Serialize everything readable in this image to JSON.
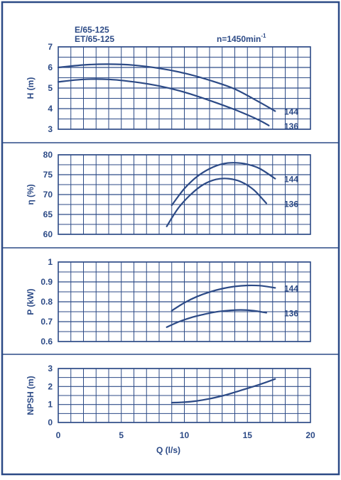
{
  "colors": {
    "ink": "#2c4a86",
    "grid": "#2c4a86",
    "background": "#ffffff"
  },
  "header": {
    "model_line_1": "E/65-125",
    "model_line_2": "ET/65-125",
    "speed_label": "n=1450min",
    "speed_exponent": "-1"
  },
  "x_axis": {
    "label": "Q (l/s)",
    "range": [
      0,
      20
    ],
    "ticks": [
      0,
      5,
      10,
      15,
      20
    ]
  },
  "chart_data": [
    {
      "type": "line",
      "id": "head",
      "ylabel": "H (m)",
      "ylim": [
        3,
        7
      ],
      "yticks": [
        3,
        4,
        5,
        6,
        7
      ],
      "xlim": [
        0,
        20
      ],
      "series": [
        {
          "name": "144",
          "x": [
            0,
            2,
            4,
            6,
            8,
            10,
            12,
            14,
            16,
            17.2
          ],
          "y": [
            6.0,
            6.12,
            6.16,
            6.11,
            5.96,
            5.72,
            5.38,
            4.95,
            4.3,
            3.88
          ]
        },
        {
          "name": "136",
          "x": [
            0,
            2,
            4,
            6,
            8,
            10,
            12,
            14,
            15.8,
            16.7
          ],
          "y": [
            5.3,
            5.42,
            5.42,
            5.3,
            5.1,
            4.8,
            4.4,
            3.95,
            3.48,
            3.18
          ]
        }
      ]
    },
    {
      "type": "line",
      "id": "efficiency",
      "ylabel": "η (%)",
      "ylim": [
        60,
        80
      ],
      "yticks": [
        60,
        65,
        70,
        75,
        80
      ],
      "xlim": [
        0,
        20
      ],
      "series": [
        {
          "name": "144",
          "x": [
            9,
            10,
            11,
            12,
            13,
            14,
            15,
            16,
            17.2
          ],
          "y": [
            67.3,
            71.5,
            74.5,
            76.5,
            77.7,
            78.0,
            77.6,
            76.5,
            74.0
          ]
        },
        {
          "name": "136",
          "x": [
            8.6,
            9.5,
            10.5,
            11.5,
            12.5,
            13.5,
            14.5,
            15.5,
            16.5
          ],
          "y": [
            62.0,
            66.5,
            70.0,
            72.5,
            73.8,
            74.0,
            73.2,
            71.2,
            67.8
          ]
        }
      ]
    },
    {
      "type": "line",
      "id": "power",
      "ylabel": "P (kW)",
      "ylim": [
        0.6,
        1
      ],
      "yticks": [
        0.6,
        0.7,
        0.8,
        0.9,
        1
      ],
      "xlim": [
        0,
        20
      ],
      "series": [
        {
          "name": "144",
          "x": [
            9,
            10,
            11,
            12,
            13,
            14,
            15,
            16,
            17.2
          ],
          "y": [
            0.755,
            0.795,
            0.826,
            0.849,
            0.866,
            0.877,
            0.882,
            0.881,
            0.87
          ]
        },
        {
          "name": "136",
          "x": [
            8.6,
            9.5,
            10.5,
            11.5,
            12.5,
            13.5,
            14.5,
            15.5,
            16.5
          ],
          "y": [
            0.672,
            0.698,
            0.72,
            0.736,
            0.749,
            0.756,
            0.759,
            0.755,
            0.745
          ]
        }
      ]
    },
    {
      "type": "line",
      "id": "npsh",
      "ylabel": "NPSH (m)",
      "ylim": [
        0,
        3
      ],
      "yticks": [
        0,
        1,
        2,
        3
      ],
      "xlim": [
        0,
        20
      ],
      "series": [
        {
          "x": [
            9,
            10,
            11,
            12,
            13,
            14,
            15,
            16,
            17.2
          ],
          "y": [
            1.1,
            1.13,
            1.2,
            1.32,
            1.48,
            1.68,
            1.9,
            2.12,
            2.42
          ]
        }
      ]
    }
  ]
}
